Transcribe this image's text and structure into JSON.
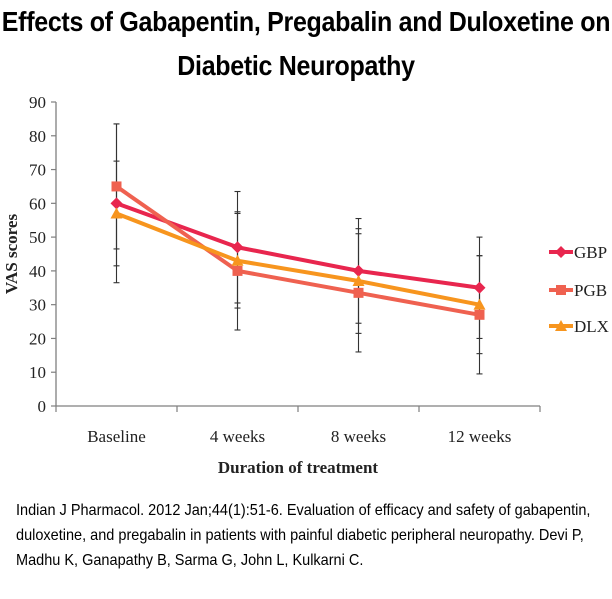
{
  "title_line1": "Effects of Gabapentin, Pregabalin and Duloxetine on",
  "title_line2": "Diabetic Neuropathy",
  "caption": "Indian J Pharmacol. 2012 Jan;44(1):51-6. Evaluation of efficacy and safety of gabapentin, duloxetine, and pregabalin in patients with painful diabetic peripheral neuropathy. Devi P, Madhu K, Ganapathy B, Sarma G, John L, Kulkarni C.",
  "chart_data": {
    "type": "line",
    "categories": [
      "Baseline",
      "4 weeks",
      "8 weeks",
      "12 weeks"
    ],
    "xlabel": "Duration of treatment",
    "ylabel": "VAS scores",
    "ylim": [
      0,
      90
    ],
    "yticks": [
      0,
      10,
      20,
      30,
      40,
      50,
      60,
      70,
      80,
      90
    ],
    "grid": false,
    "legend_position": "right",
    "error_bars": true,
    "series": [
      {
        "name": "GBP",
        "color": "#e8264e",
        "marker": "diamond",
        "values": [
          60,
          47,
          40,
          35
        ],
        "error": [
          23.5,
          16.5,
          15.5,
          15
        ]
      },
      {
        "name": "PGB",
        "color": "#ef6150",
        "marker": "square",
        "values": [
          65,
          40,
          33.5,
          27
        ],
        "error": [
          18.5,
          17.5,
          17.5,
          17.5
        ]
      },
      {
        "name": "DLX",
        "color": "#f7951e",
        "marker": "triangle",
        "values": [
          57,
          43,
          37,
          30
        ],
        "error": [
          15.5,
          14,
          15.5,
          14.5
        ]
      }
    ]
  }
}
